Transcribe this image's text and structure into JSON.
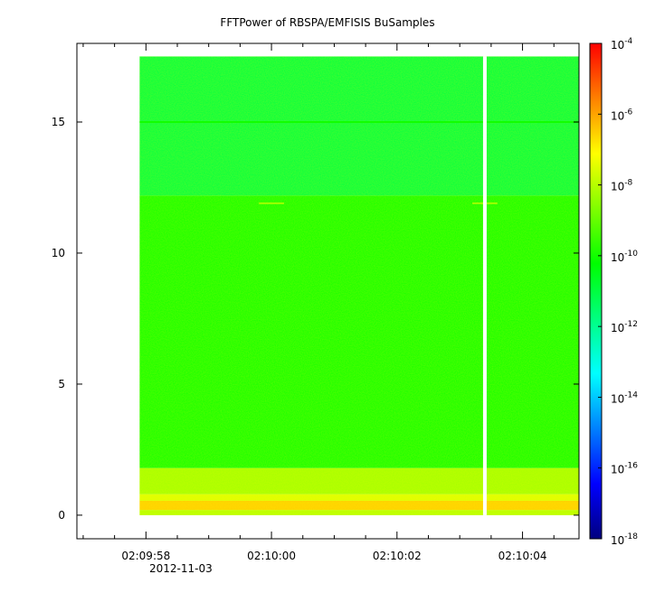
{
  "chart_data": {
    "type": "heatmap",
    "title": "FFTPower of RBSPA/EMFISIS  BuSamples",
    "xlabel": "",
    "ylabel": "",
    "x_axis": {
      "unit": "time",
      "date_label": "2012-11-03",
      "range": [
        "02:09:56.9",
        "02:10:04.9"
      ],
      "ticks": [
        "02:09:58",
        "02:10:00",
        "02:10:02",
        "02:10:04"
      ],
      "data_start": "02:09:57.9",
      "data_end": "02:10:04.9",
      "gap_at": "02:10:03.4"
    },
    "y_axis": {
      "range": [
        -0.9,
        18.0
      ],
      "ticks": [
        0,
        5,
        10,
        15
      ],
      "data_range": [
        0,
        17.5
      ]
    },
    "colorbar": {
      "scale": "log",
      "range": [
        1e-18,
        0.0001
      ],
      "tick_labels": [
        {
          "base": "10",
          "exp": "-4"
        },
        {
          "base": "10",
          "exp": "-6"
        },
        {
          "base": "10",
          "exp": "-8"
        },
        {
          "base": "10",
          "exp": "-10"
        },
        {
          "base": "10",
          "exp": "-12"
        },
        {
          "base": "10",
          "exp": "-14"
        },
        {
          "base": "10",
          "exp": "-16"
        },
        {
          "base": "10",
          "exp": "-18"
        }
      ],
      "colormap": [
        "#00007f",
        "#0000ff",
        "#0080ff",
        "#00ffff",
        "#00ff80",
        "#00ff00",
        "#80ff00",
        "#ffff00",
        "#ff8000",
        "#ff0000"
      ]
    },
    "power_bands": [
      {
        "y_from": 0.0,
        "y_to": 0.2,
        "power": 1e-08
      },
      {
        "y_from": 0.2,
        "y_to": 0.55,
        "power": 3e-07
      },
      {
        "y_from": 0.55,
        "y_to": 0.8,
        "power": 3e-08
      },
      {
        "y_from": 0.8,
        "y_to": 1.8,
        "power": 6e-09
      },
      {
        "y_from": 1.8,
        "y_to": 12.2,
        "power": 1e-10
      },
      {
        "y_from": 12.2,
        "y_to": 17.5,
        "power": 1e-11
      }
    ],
    "lines": [
      {
        "y": 15.0,
        "power": 1e-10,
        "x_from": "02:09:57.9",
        "x_to": "02:10:04.9"
      },
      {
        "y": 11.9,
        "power": 5e-09,
        "x_from": "02:09:59.8",
        "x_to": "02:10:00.2"
      },
      {
        "y": 11.9,
        "power": 5e-09,
        "x_from": "02:10:03.2",
        "x_to": "02:10:03.6"
      }
    ]
  }
}
